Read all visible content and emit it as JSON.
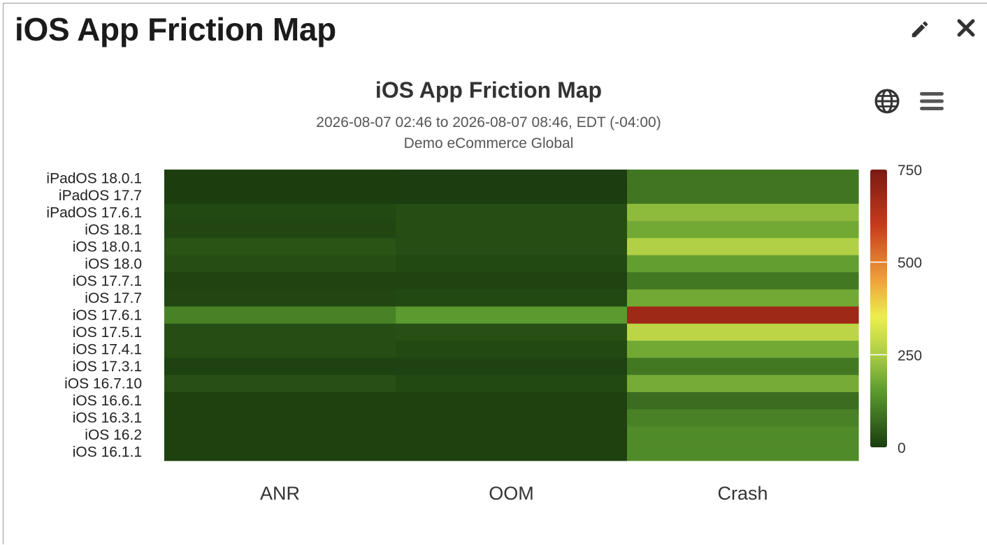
{
  "window": {
    "title": "iOS App Friction Map"
  },
  "icons": {
    "edit": "pencil-icon",
    "close": "close-icon",
    "globe": "globe-icon",
    "menu": "hamburger-menu-icon"
  },
  "colors": {
    "low": "#1b3d0f",
    "mid": "#95bd44",
    "yellow": "#ecef4c",
    "orange": "#e07a2e",
    "high": "#7a1a12"
  },
  "chart_data": {
    "type": "heatmap",
    "title": "iOS App Friction Map",
    "subtitle": "2026-08-07 02:46 to 2026-08-07 08:46, EDT (-04:00)",
    "subtitle2": "Demo eCommerce Global",
    "x_categories": [
      "ANR",
      "OOM",
      "Crash"
    ],
    "y_categories": [
      "iPadOS 18.0.1",
      "iPadOS 17.7",
      "iPadOS 17.6.1",
      "iOS 18.1",
      "iOS 18.0.1",
      "iOS 18.0",
      "iOS 17.7.1",
      "iOS 17.7",
      "iOS 17.6.1",
      "iOS 17.5.1",
      "iOS 17.4.1",
      "iOS 17.3.1",
      "iOS 16.7.10",
      "iOS 16.6.1",
      "iOS 16.3.1",
      "iOS 16.2",
      "iOS 16.1.1"
    ],
    "values": [
      [
        2,
        0,
        90
      ],
      [
        2,
        0,
        90
      ],
      [
        20,
        25,
        215
      ],
      [
        15,
        25,
        180
      ],
      [
        35,
        25,
        260
      ],
      [
        25,
        20,
        160
      ],
      [
        10,
        10,
        95
      ],
      [
        15,
        20,
        180
      ],
      [
        110,
        150,
        680
      ],
      [
        25,
        30,
        275
      ],
      [
        25,
        20,
        180
      ],
      [
        8,
        8,
        95
      ],
      [
        30,
        20,
        185
      ],
      [
        6,
        6,
        75
      ],
      [
        6,
        6,
        110
      ],
      [
        6,
        6,
        125
      ],
      [
        6,
        6,
        125
      ]
    ],
    "color_axis": {
      "min": 0,
      "max": 750,
      "ticks": [
        "0",
        "250",
        "500",
        "750"
      ]
    }
  }
}
